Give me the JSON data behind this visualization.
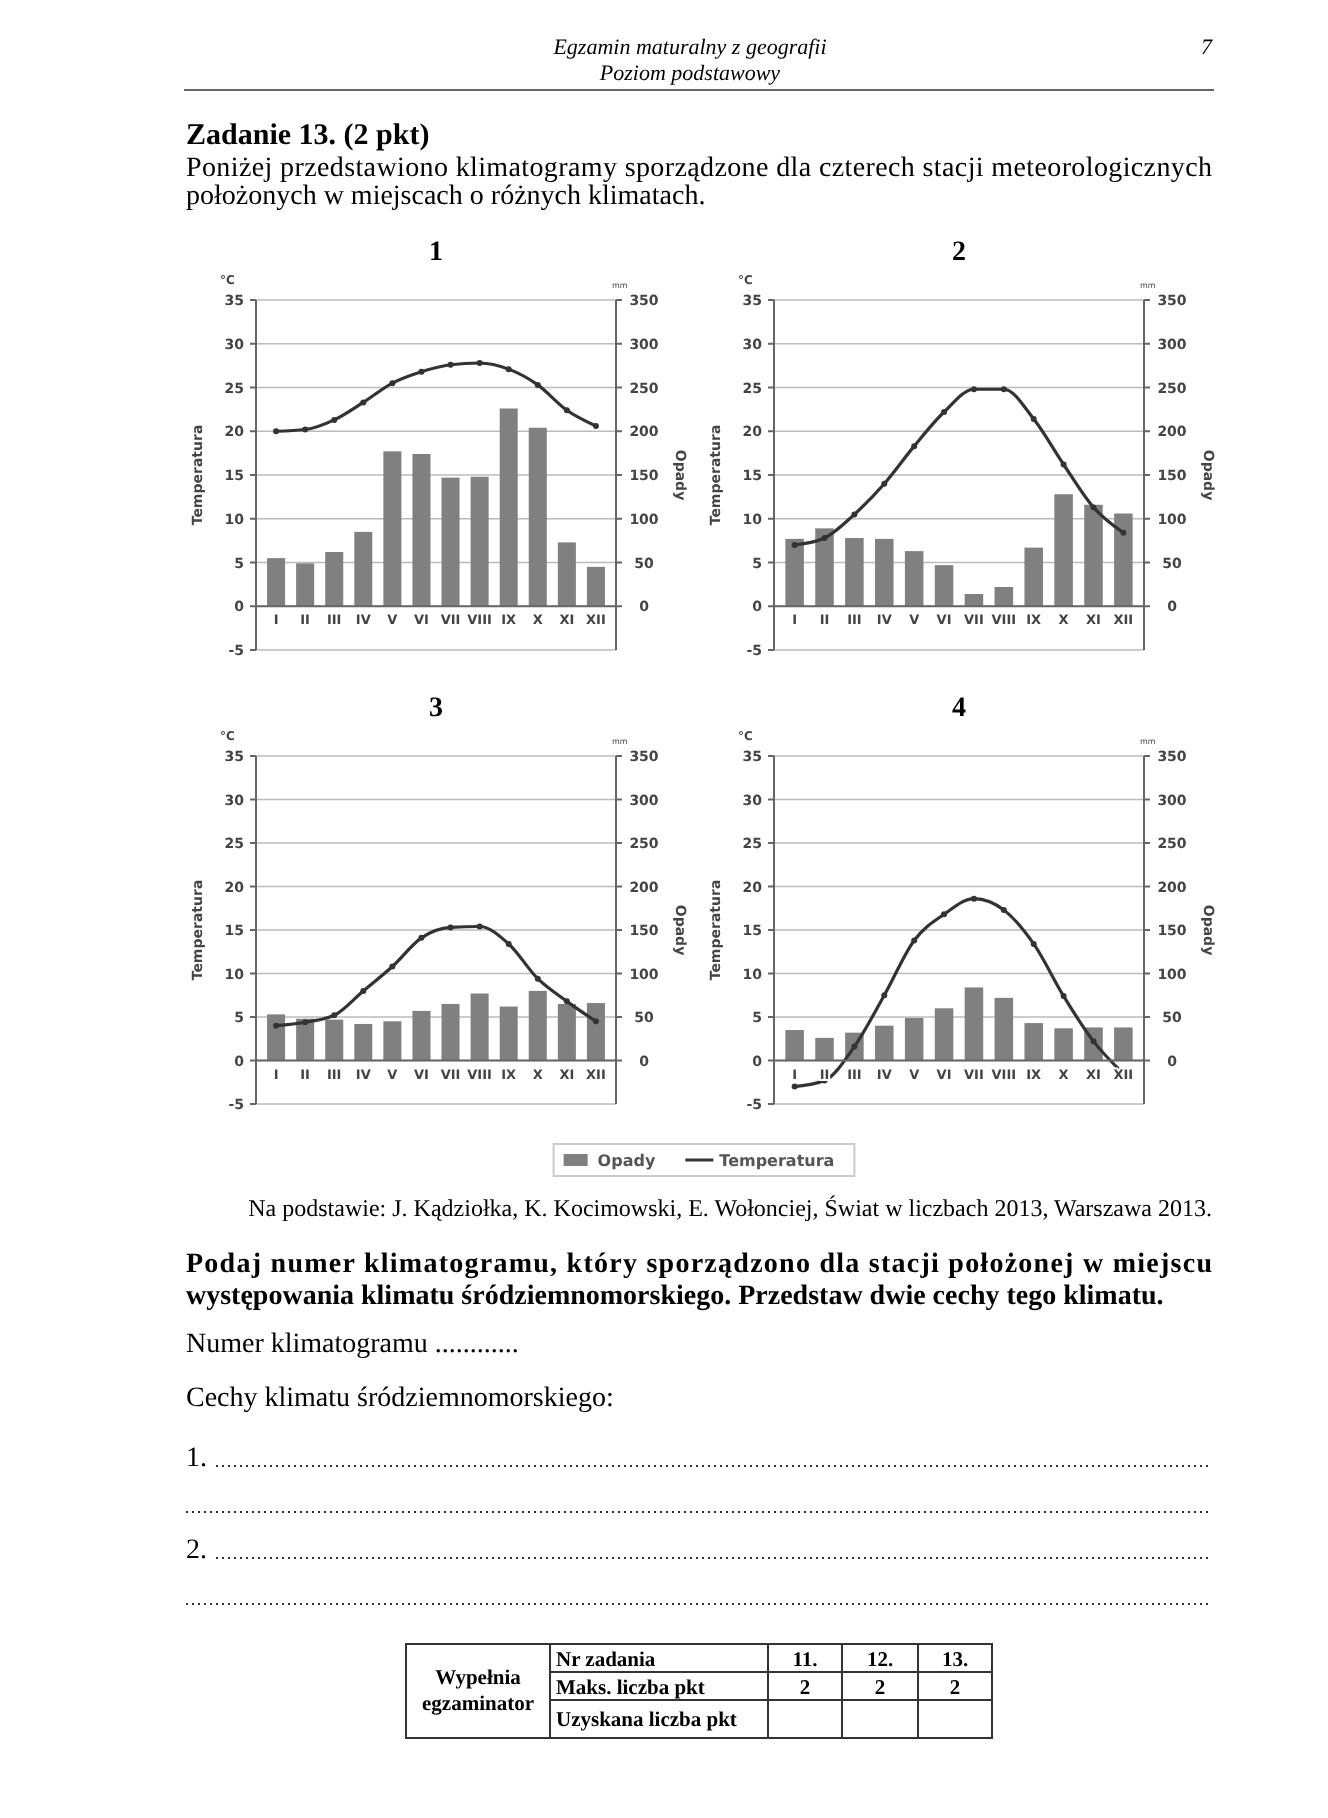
{
  "chart_data": [
    {
      "type": "other",
      "title": "Zadanie 13. (2 pkt)",
      "subtitle": "Poniżej przedstawiono klimatogramy sporządzone dla czterech stacji meteorologicznych położonych w miejscach o różnych klimatach.",
      "annotations": [
        "Egzamin maturalny z geografii",
        "Poziom podstawowy",
        "7"
      ]
    },
    {
      "type": "bar",
      "title": "1",
      "categories": [
        "I",
        "II",
        "III",
        "IV",
        "V",
        "VI",
        "VII",
        "VIII",
        "IX",
        "X",
        "XI",
        "XII"
      ],
      "ylabel": "Temperatura",
      "y2label": "Opady",
      "annotations": [
        "°C",
        "mm"
      ],
      "ylim": [
        -5,
        35
      ],
      "yticks": [
        -5,
        0,
        5,
        10,
        15,
        20,
        25,
        30,
        35
      ],
      "y2lim": [
        -50,
        350
      ],
      "y2ticks": [
        0,
        50,
        100,
        150,
        200,
        250,
        300,
        350
      ],
      "grid": "y",
      "marker": "circle",
      "series": [
        {
          "type": "bar",
          "axis": "y2",
          "color": "#808080",
          "values": [
            55,
            49,
            62,
            85,
            177,
            174,
            147,
            148,
            226,
            204,
            73,
            45
          ]
        },
        {
          "type": "line",
          "color": "#333333",
          "values": [
            20,
            20.2,
            21.3,
            23.3,
            25.5,
            26.8,
            27.6,
            27.8,
            27.1,
            25.3,
            22.4,
            20.6
          ]
        }
      ]
    },
    {
      "type": "bar",
      "title": "2",
      "categories": [
        "I",
        "II",
        "III",
        "IV",
        "V",
        "VI",
        "VII",
        "VIII",
        "IX",
        "X",
        "XI",
        "XII"
      ],
      "ylabel": "Temperatura",
      "y2label": "Opady",
      "annotations": [
        "°C",
        "mm"
      ],
      "ylim": [
        -5,
        35
      ],
      "yticks": [
        -5,
        0,
        5,
        10,
        15,
        20,
        25,
        30,
        35
      ],
      "y2lim": [
        -50,
        350
      ],
      "y2ticks": [
        0,
        50,
        100,
        150,
        200,
        250,
        300,
        350
      ],
      "grid": "y",
      "marker": "circle",
      "series": [
        {
          "type": "bar",
          "axis": "y2",
          "color": "#808080",
          "values": [
            77,
            89,
            78,
            77,
            63,
            47,
            14,
            22,
            67,
            128,
            116,
            106
          ]
        },
        {
          "type": "line",
          "color": "#333333",
          "values": [
            7,
            7.8,
            10.5,
            14,
            18.3,
            22.2,
            24.8,
            24.8,
            21.4,
            16.2,
            11.3,
            8.4
          ]
        }
      ]
    },
    {
      "type": "bar",
      "title": "3",
      "categories": [
        "I",
        "II",
        "III",
        "IV",
        "V",
        "VI",
        "VII",
        "VIII",
        "IX",
        "X",
        "XI",
        "XII"
      ],
      "ylabel": "Temperatura",
      "y2label": "Opady",
      "annotations": [
        "°C",
        "mm"
      ],
      "ylim": [
        -5,
        35
      ],
      "yticks": [
        -5,
        0,
        5,
        10,
        15,
        20,
        25,
        30,
        35
      ],
      "y2lim": [
        -50,
        350
      ],
      "y2ticks": [
        0,
        50,
        100,
        150,
        200,
        250,
        300,
        350
      ],
      "grid": "y",
      "marker": "circle",
      "series": [
        {
          "type": "bar",
          "axis": "y2",
          "color": "#808080",
          "values": [
            53,
            48,
            47,
            42,
            45,
            57,
            65,
            77,
            62,
            80,
            65,
            66
          ]
        },
        {
          "type": "line",
          "color": "#333333",
          "values": [
            4,
            4.4,
            5.2,
            8,
            10.8,
            14.1,
            15.3,
            15.4,
            13.4,
            9.4,
            6.8,
            4.5
          ]
        }
      ]
    },
    {
      "type": "bar",
      "title": "4",
      "categories": [
        "I",
        "II",
        "III",
        "IV",
        "V",
        "VI",
        "VII",
        "VIII",
        "IX",
        "X",
        "XI",
        "XII"
      ],
      "ylabel": "Temperatura",
      "y2label": "Opady",
      "annotations": [
        "°C",
        "mm"
      ],
      "ylim": [
        -5,
        35
      ],
      "yticks": [
        -5,
        0,
        5,
        10,
        15,
        20,
        25,
        30,
        35
      ],
      "y2lim": [
        -50,
        350
      ],
      "y2ticks": [
        0,
        50,
        100,
        150,
        200,
        250,
        300,
        350
      ],
      "grid": "y",
      "marker": "circle",
      "legend": "bottom",
      "series": [
        {
          "name": "Opady",
          "type": "bar",
          "axis": "y2",
          "color": "#808080",
          "values": [
            35,
            26,
            32,
            40,
            49,
            60,
            84,
            72,
            43,
            37,
            38,
            38
          ]
        },
        {
          "name": "Temperatura",
          "type": "line",
          "color": "#333333",
          "values": [
            -3,
            -2.3,
            1.6,
            7.5,
            13.8,
            16.8,
            18.6,
            17.3,
            13.4,
            7.4,
            2.2,
            -1.5
          ]
        }
      ]
    },
    {
      "type": "other",
      "annotations": [
        "Na podstawie: J. Kądziołka, K. Kocimowski, E. Wołonciej, Świat w liczbach 2013, Warszawa 2013.",
        "Podaj numer klimatogramu, który sporządzono dla stacji położonej w miejscu występowania klimatu śródziemnomorskiego. Przedstaw dwie cechy tego klimatu.",
        "Numer klimatogramu ............",
        "Cechy klimatu śródziemnomorskiego:",
        "1.",
        "2.",
        "Wypełnia egzaminator",
        "Nr zadania",
        "11.",
        "12.",
        "13.",
        "Maks. liczba pkt",
        "2",
        "2",
        "2",
        "Uzyskana liczba pkt"
      ]
    }
  ]
}
